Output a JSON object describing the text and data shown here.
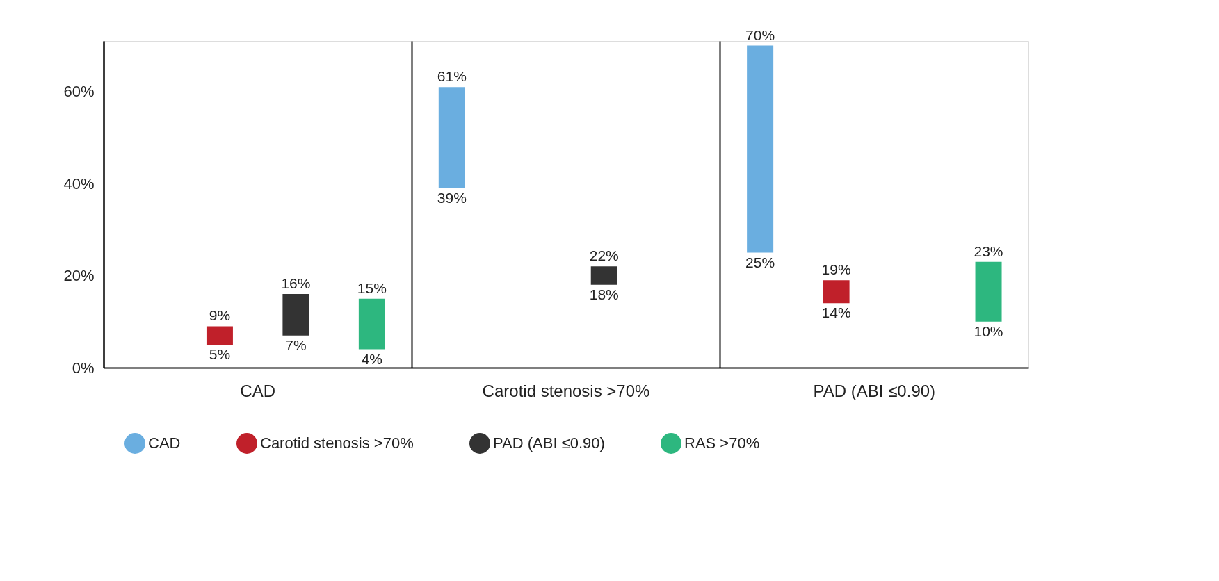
{
  "chart_data": {
    "type": "bar",
    "categories": [
      "CAD",
      "Carotid stenosis >70%",
      "PAD (ABI ≤0.90)"
    ],
    "series": [
      {
        "name": "CAD",
        "color": "#6aaee0",
        "base": [
          null,
          39,
          25
        ],
        "values": [
          null,
          22,
          45
        ],
        "value_labels": [
          null,
          [
            "39%",
            "61%"
          ],
          [
            "25%",
            "70%"
          ]
        ]
      },
      {
        "name": "Carotid stenosis >70%",
        "color": "#c0202a",
        "base": [
          5,
          null,
          14
        ],
        "values": [
          4,
          null,
          5
        ],
        "value_labels": [
          [
            "5%",
            "9%"
          ],
          null,
          [
            "14%",
            "19%"
          ]
        ]
      },
      {
        "name": "PAD (ABI ≤0.90)",
        "color": "#333333",
        "base": [
          7,
          18,
          null
        ],
        "values": [
          9,
          4,
          null
        ],
        "value_labels": [
          [
            "7%",
            "16%"
          ],
          [
            "18%",
            "22%"
          ],
          null
        ]
      },
      {
        "name": "RAS >70%",
        "color": "#2db77f",
        "base": [
          4,
          null,
          10
        ],
        "values": [
          11,
          null,
          13
        ],
        "value_labels": [
          [
            "4%",
            "15%"
          ],
          null,
          [
            "10%",
            "23%"
          ]
        ]
      }
    ],
    "ylim": [
      0,
      71
    ],
    "yticks": [
      {
        "value": 0,
        "label": "0%"
      },
      {
        "value": 20,
        "label": "20%"
      },
      {
        "value": 40,
        "label": "40%"
      },
      {
        "value": 60,
        "label": "60%"
      }
    ],
    "grid": "x",
    "legend": "bottom"
  }
}
